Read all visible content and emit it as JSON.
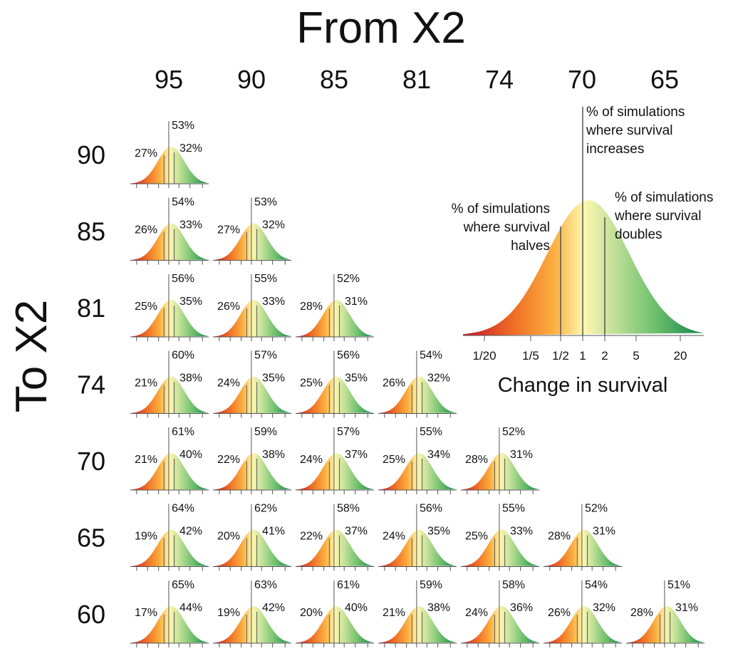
{
  "title": "From X2",
  "y_title": "To X2",
  "columns": [
    "95",
    "90",
    "85",
    "81",
    "74",
    "70",
    "65"
  ],
  "rows": [
    {
      "label": "90",
      "cells": [
        {
          "left": "27%",
          "center": "53%",
          "right": "32%"
        }
      ]
    },
    {
      "label": "85",
      "cells": [
        {
          "left": "26%",
          "center": "54%",
          "right": "33%"
        },
        {
          "left": "27%",
          "center": "53%",
          "right": "32%"
        }
      ]
    },
    {
      "label": "81",
      "cells": [
        {
          "left": "25%",
          "center": "56%",
          "right": "35%"
        },
        {
          "left": "26%",
          "center": "55%",
          "right": "33%"
        },
        {
          "left": "28%",
          "center": "52%",
          "right": "31%"
        }
      ]
    },
    {
      "label": "74",
      "cells": [
        {
          "left": "21%",
          "center": "60%",
          "right": "38%"
        },
        {
          "left": "24%",
          "center": "57%",
          "right": "35%"
        },
        {
          "left": "25%",
          "center": "56%",
          "right": "35%"
        },
        {
          "left": "26%",
          "center": "54%",
          "right": "32%"
        }
      ]
    },
    {
      "label": "70",
      "cells": [
        {
          "left": "21%",
          "center": "61%",
          "right": "40%"
        },
        {
          "left": "22%",
          "center": "59%",
          "right": "38%"
        },
        {
          "left": "24%",
          "center": "57%",
          "right": "37%"
        },
        {
          "left": "25%",
          "center": "55%",
          "right": "34%"
        },
        {
          "left": "28%",
          "center": "52%",
          "right": "31%"
        }
      ]
    },
    {
      "label": "65",
      "cells": [
        {
          "left": "19%",
          "center": "64%",
          "right": "42%"
        },
        {
          "left": "20%",
          "center": "62%",
          "right": "41%"
        },
        {
          "left": "22%",
          "center": "58%",
          "right": "37%"
        },
        {
          "left": "24%",
          "center": "56%",
          "right": "35%"
        },
        {
          "left": "25%",
          "center": "55%",
          "right": "33%"
        },
        {
          "left": "28%",
          "center": "52%",
          "right": "31%"
        }
      ]
    },
    {
      "label": "60",
      "cells": [
        {
          "left": "17%",
          "center": "65%",
          "right": "44%"
        },
        {
          "left": "19%",
          "center": "63%",
          "right": "42%"
        },
        {
          "left": "20%",
          "center": "61%",
          "right": "40%"
        },
        {
          "left": "21%",
          "center": "59%",
          "right": "38%"
        },
        {
          "left": "24%",
          "center": "58%",
          "right": "36%"
        },
        {
          "left": "26%",
          "center": "54%",
          "right": "32%"
        },
        {
          "left": "28%",
          "center": "51%",
          "right": "31%"
        }
      ]
    }
  ],
  "legend": {
    "annotation_center": [
      "% of simulations",
      "where survival",
      "increases"
    ],
    "annotation_left": [
      "% of simulations",
      "where survival",
      "halves"
    ],
    "annotation_right": [
      "% of simulations",
      "where survival",
      "doubles"
    ],
    "ticks": [
      "1/20",
      "1/5",
      "1/2",
      "1",
      "2",
      "5",
      "20"
    ],
    "x_label": "Change in survival"
  }
}
